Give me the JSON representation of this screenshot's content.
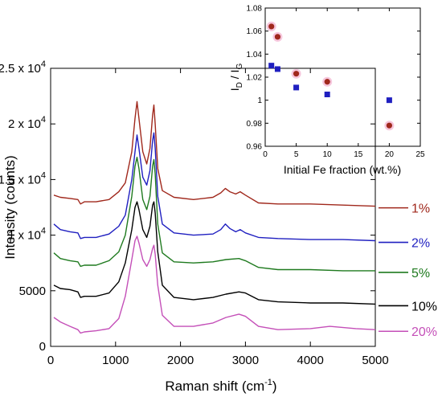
{
  "chart_data": [
    {
      "type": "line",
      "xlabel_main": "Raman shift (cm",
      "xlabel_sup": "-1",
      "xlabel_close": ")",
      "ylabel": "Intensity (counts)",
      "xlim": [
        0,
        5000
      ],
      "ylim": [
        0,
        25000
      ],
      "xticks": [
        0,
        1000,
        2000,
        3000,
        4000,
        5000
      ],
      "yticks": [
        {
          "value": 0,
          "label": "0",
          "exp": ""
        },
        {
          "value": 5000,
          "label": "5000",
          "exp": ""
        },
        {
          "value": 10000,
          "label": "1 x 10",
          "exp": "4"
        },
        {
          "value": 15000,
          "label": "1.5 x 10",
          "exp": "4"
        },
        {
          "value": 20000,
          "label": "2 x 10",
          "exp": "4"
        },
        {
          "value": 25000,
          "label": "2.5 x 10",
          "exp": "4"
        }
      ],
      "grid": false,
      "legend_position": "right",
      "series": [
        {
          "name": "1%",
          "color": "#a0281c",
          "points": [
            [
              50,
              13600
            ],
            [
              150,
              13400
            ],
            [
              300,
              13300
            ],
            [
              420,
              13200
            ],
            [
              460,
              12800
            ],
            [
              520,
              13000
            ],
            [
              700,
              13000
            ],
            [
              900,
              13200
            ],
            [
              1050,
              13900
            ],
            [
              1150,
              14700
            ],
            [
              1250,
              17500
            ],
            [
              1300,
              20500
            ],
            [
              1330,
              22000
            ],
            [
              1360,
              20500
            ],
            [
              1420,
              17500
            ],
            [
              1480,
              16400
            ],
            [
              1530,
              17800
            ],
            [
              1570,
              20800
            ],
            [
              1590,
              21700
            ],
            [
              1610,
              20000
            ],
            [
              1650,
              16000
            ],
            [
              1720,
              14000
            ],
            [
              1900,
              13400
            ],
            [
              2200,
              13200
            ],
            [
              2500,
              13400
            ],
            [
              2620,
              13800
            ],
            [
              2690,
              14200
            ],
            [
              2760,
              13900
            ],
            [
              2850,
              13700
            ],
            [
              2920,
              13900
            ],
            [
              3000,
              13600
            ],
            [
              3200,
              12900
            ],
            [
              3500,
              12800
            ],
            [
              4000,
              12800
            ],
            [
              4500,
              12700
            ],
            [
              5000,
              12600
            ]
          ]
        },
        {
          "name": "2%",
          "color": "#1f1fc0",
          "points": [
            [
              50,
              11000
            ],
            [
              150,
              10500
            ],
            [
              300,
              10300
            ],
            [
              420,
              10200
            ],
            [
              460,
              9700
            ],
            [
              520,
              9800
            ],
            [
              700,
              9800
            ],
            [
              900,
              10100
            ],
            [
              1050,
              10800
            ],
            [
              1150,
              11800
            ],
            [
              1250,
              15000
            ],
            [
              1300,
              17500
            ],
            [
              1330,
              19000
            ],
            [
              1360,
              17800
            ],
            [
              1420,
              15200
            ],
            [
              1480,
              14500
            ],
            [
              1530,
              15800
            ],
            [
              1570,
              18500
            ],
            [
              1590,
              19200
            ],
            [
              1610,
              17800
            ],
            [
              1650,
              13500
            ],
            [
              1720,
              11000
            ],
            [
              1900,
              10200
            ],
            [
              2200,
              10000
            ],
            [
              2500,
              10100
            ],
            [
              2620,
              10500
            ],
            [
              2690,
              11000
            ],
            [
              2760,
              10600
            ],
            [
              2850,
              10300
            ],
            [
              2920,
              10500
            ],
            [
              3000,
              10200
            ],
            [
              3200,
              9800
            ],
            [
              3500,
              9700
            ],
            [
              4000,
              9600
            ],
            [
              4500,
              9600
            ],
            [
              5000,
              9500
            ]
          ]
        },
        {
          "name": "5%",
          "color": "#1f7a1f",
          "points": [
            [
              50,
              8400
            ],
            [
              150,
              7900
            ],
            [
              300,
              7700
            ],
            [
              420,
              7600
            ],
            [
              460,
              7200
            ],
            [
              520,
              7300
            ],
            [
              700,
              7300
            ],
            [
              900,
              7700
            ],
            [
              1050,
              8500
            ],
            [
              1150,
              10000
            ],
            [
              1250,
              13500
            ],
            [
              1300,
              16200
            ],
            [
              1330,
              17000
            ],
            [
              1360,
              16000
            ],
            [
              1420,
              13200
            ],
            [
              1480,
              12300
            ],
            [
              1530,
              13500
            ],
            [
              1570,
              16200
            ],
            [
              1590,
              16800
            ],
            [
              1610,
              15500
            ],
            [
              1650,
              11000
            ],
            [
              1720,
              8400
            ],
            [
              1900,
              7600
            ],
            [
              2200,
              7500
            ],
            [
              2500,
              7600
            ],
            [
              2700,
              7800
            ],
            [
              2900,
              7900
            ],
            [
              3000,
              7700
            ],
            [
              3200,
              7100
            ],
            [
              3500,
              6900
            ],
            [
              4000,
              6900
            ],
            [
              4500,
              6800
            ],
            [
              5000,
              6800
            ]
          ]
        },
        {
          "name": "10%",
          "color": "#000000",
          "points": [
            [
              50,
              5500
            ],
            [
              150,
              5200
            ],
            [
              300,
              5100
            ],
            [
              420,
              4900
            ],
            [
              460,
              4400
            ],
            [
              520,
              4500
            ],
            [
              700,
              4500
            ],
            [
              900,
              4800
            ],
            [
              1050,
              5800
            ],
            [
              1150,
              7500
            ],
            [
              1250,
              10500
            ],
            [
              1300,
              12500
            ],
            [
              1330,
              13000
            ],
            [
              1360,
              12300
            ],
            [
              1420,
              10500
            ],
            [
              1480,
              9800
            ],
            [
              1530,
              10800
            ],
            [
              1570,
              12700
            ],
            [
              1590,
              13000
            ],
            [
              1610,
              12000
            ],
            [
              1650,
              8500
            ],
            [
              1720,
              5500
            ],
            [
              1900,
              4400
            ],
            [
              2200,
              4200
            ],
            [
              2500,
              4400
            ],
            [
              2700,
              4700
            ],
            [
              2900,
              4900
            ],
            [
              3000,
              4800
            ],
            [
              3200,
              4200
            ],
            [
              3500,
              4000
            ],
            [
              4000,
              3900
            ],
            [
              4500,
              3900
            ],
            [
              5000,
              3800
            ]
          ]
        },
        {
          "name": "20%",
          "color": "#c44fb8",
          "points": [
            [
              50,
              2600
            ],
            [
              150,
              2200
            ],
            [
              300,
              1800
            ],
            [
              420,
              1500
            ],
            [
              460,
              1200
            ],
            [
              520,
              1300
            ],
            [
              700,
              1400
            ],
            [
              900,
              1600
            ],
            [
              1050,
              2500
            ],
            [
              1150,
              4500
            ],
            [
              1250,
              7800
            ],
            [
              1300,
              9500
            ],
            [
              1330,
              9900
            ],
            [
              1360,
              9300
            ],
            [
              1420,
              7800
            ],
            [
              1480,
              7200
            ],
            [
              1530,
              7800
            ],
            [
              1570,
              8800
            ],
            [
              1590,
              9100
            ],
            [
              1610,
              8300
            ],
            [
              1650,
              5500
            ],
            [
              1720,
              2800
            ],
            [
              1900,
              1800
            ],
            [
              2200,
              1800
            ],
            [
              2500,
              2100
            ],
            [
              2700,
              2600
            ],
            [
              2900,
              2900
            ],
            [
              3000,
              2700
            ],
            [
              3200,
              1800
            ],
            [
              3500,
              1500
            ],
            [
              4000,
              1600
            ],
            [
              4300,
              1800
            ],
            [
              4700,
              1600
            ],
            [
              5000,
              1500
            ]
          ]
        }
      ]
    },
    {
      "type": "scatter",
      "inset": true,
      "xlabel": "Initial Fe fraction (wt.%)",
      "ylabel_main": "I",
      "ylabel_sub1": "D",
      "ylabel_mid": " / I",
      "ylabel_sub2": "G",
      "xlim": [
        0,
        25
      ],
      "ylim": [
        0.96,
        1.08
      ],
      "xticks": [
        0,
        5,
        10,
        15,
        20,
        25
      ],
      "yticks": [
        {
          "value": 0.96,
          "label": "0.96"
        },
        {
          "value": 0.98,
          "label": "0.98"
        },
        {
          "value": 1.0,
          "label": "1"
        },
        {
          "value": 1.02,
          "label": "1.02"
        },
        {
          "value": 1.04,
          "label": "1.04"
        },
        {
          "value": 1.06,
          "label": "1.06"
        },
        {
          "value": 1.08,
          "label": "1.08"
        }
      ],
      "series": [
        {
          "marker": "circle",
          "color": "#a0281c",
          "points": [
            [
              1,
              1.064
            ],
            [
              2,
              1.055
            ],
            [
              5,
              1.023
            ],
            [
              10,
              1.016
            ],
            [
              20,
              0.978
            ]
          ]
        },
        {
          "marker": "square",
          "color": "#1f1fc0",
          "points": [
            [
              1,
              1.03
            ],
            [
              2,
              1.027
            ],
            [
              5,
              1.011
            ],
            [
              10,
              1.005
            ],
            [
              20,
              1.0
            ]
          ]
        }
      ]
    }
  ]
}
